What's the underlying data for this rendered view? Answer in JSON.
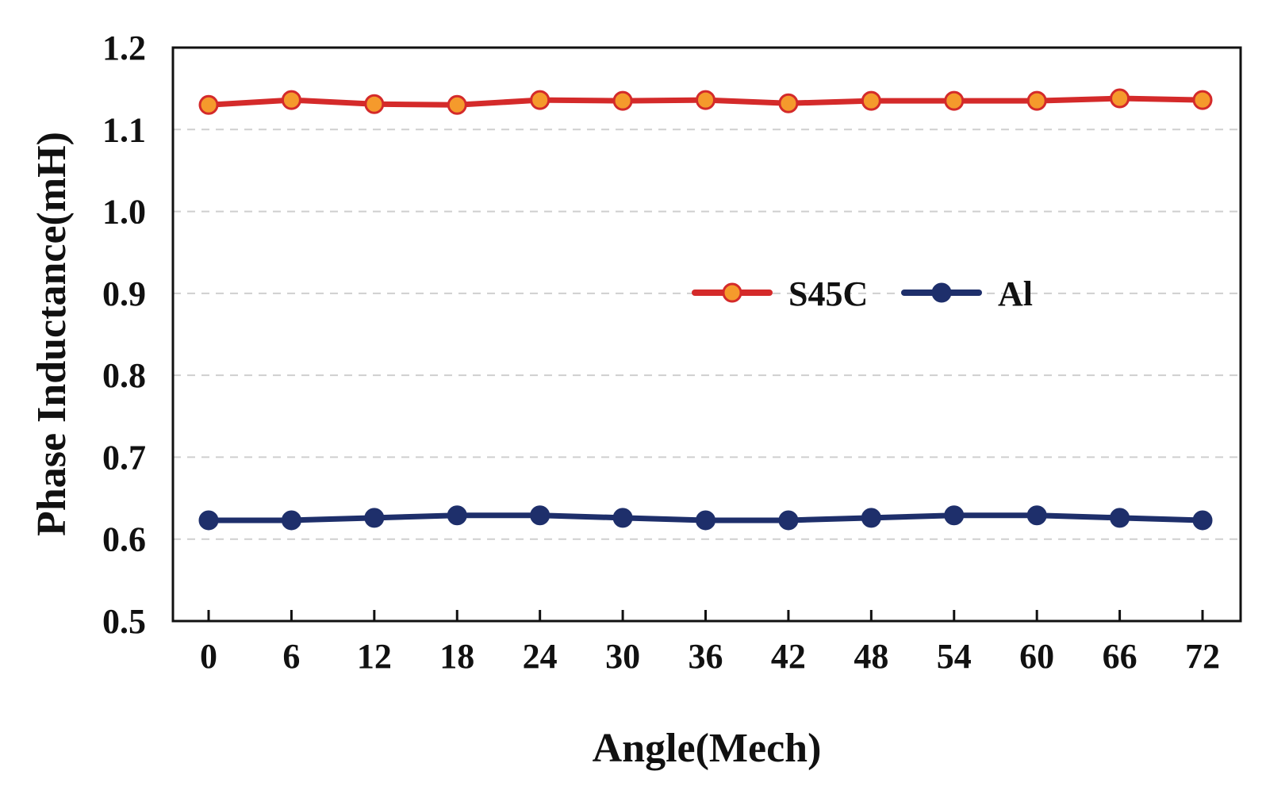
{
  "chart_data": {
    "type": "line",
    "title": "",
    "xlabel": "Angle(Mech)",
    "ylabel": "Phase Inductance(mH)",
    "x": [
      0,
      6,
      12,
      18,
      24,
      30,
      36,
      42,
      48,
      54,
      60,
      66,
      72
    ],
    "xticks": [
      "0",
      "6",
      "12",
      "18",
      "24",
      "30",
      "36",
      "42",
      "48",
      "54",
      "60",
      "66",
      "72"
    ],
    "ylim": [
      0.5,
      1.2
    ],
    "yticks": [
      "0.5",
      "0.6",
      "0.7",
      "0.8",
      "0.9",
      "1.0",
      "1.1",
      "1.2"
    ],
    "grid": "horizontal dashed",
    "legend_position": "center-right",
    "series": [
      {
        "name": "S45C",
        "line_color": "#d42a2a",
        "marker_color": "#f59a2c",
        "values": [
          1.13,
          1.136,
          1.131,
          1.13,
          1.136,
          1.135,
          1.136,
          1.132,
          1.135,
          1.135,
          1.135,
          1.138,
          1.136
        ]
      },
      {
        "name": "Al",
        "line_color": "#1e2f6b",
        "marker_color": "#1e2f6b",
        "values": [
          0.623,
          0.623,
          0.626,
          0.629,
          0.629,
          0.626,
          0.623,
          0.623,
          0.626,
          0.629,
          0.629,
          0.626,
          0.623
        ]
      }
    ]
  }
}
